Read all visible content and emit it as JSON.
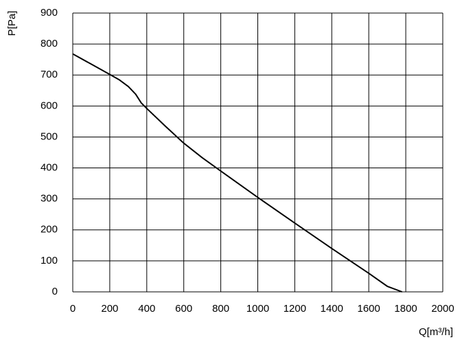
{
  "chart_data": {
    "type": "line",
    "x_label": "Q[m³/h]",
    "y_label": "P[Pa]",
    "x": [
      0,
      100,
      200,
      250,
      300,
      340,
      370,
      400,
      500,
      600,
      700,
      800,
      1000,
      1200,
      1400,
      1600,
      1700,
      1780
    ],
    "values": [
      768,
      735,
      702,
      685,
      663,
      638,
      610,
      592,
      535,
      480,
      433,
      390,
      305,
      222,
      140,
      60,
      18,
      0
    ],
    "color": "#000000",
    "xlim": [
      0,
      2000
    ],
    "xticks": [
      0,
      200,
      400,
      600,
      800,
      1000,
      1200,
      1400,
      1600,
      1800,
      2000
    ],
    "ylim": [
      0,
      900
    ],
    "yticks": [
      0,
      100,
      200,
      300,
      400,
      500,
      600,
      700,
      800,
      900
    ],
    "grid": true
  }
}
